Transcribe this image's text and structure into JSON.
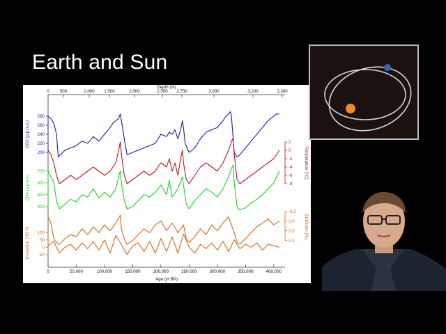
{
  "slide": {
    "title": "Earth and Sun"
  },
  "chart_data": {
    "type": "line",
    "title": "",
    "xlabel": "Age (yr BP)",
    "x_ticks": [
      "0",
      "50,000",
      "100,000",
      "150,000",
      "200,000",
      "250,000",
      "300,000",
      "350,000",
      "400,000"
    ],
    "xlim": [
      0,
      420000
    ],
    "top_axis": {
      "label": "Depth (m)",
      "ticks": [
        "0",
        "500",
        "1,000",
        "1,500",
        "2,000",
        "2,500",
        "2,750",
        "3,000",
        "3,200",
        "3,300"
      ]
    },
    "colors": {
      "co2": "#1a1aa8",
      "temperature": "#c0141b",
      "ch4": "#1fcf1f",
      "d18o": "#d2691e",
      "insolation": "#d2691e"
    },
    "series": [
      {
        "name": "CO2",
        "ylabel": "CO2 (p.p.m.v.)",
        "side": "left",
        "ticks": [
          "200",
          "220",
          "240",
          "260",
          "280"
        ],
        "ylim": [
          180,
          300
        ],
        "x": [
          0,
          5000,
          10000,
          15000,
          18000,
          22000,
          30000,
          40000,
          50000,
          60000,
          70000,
          80000,
          90000,
          100000,
          110000,
          115000,
          120000,
          125000,
          128000,
          130000,
          135000,
          140000,
          150000,
          160000,
          170000,
          180000,
          190000,
          200000,
          210000,
          215000,
          220000,
          225000,
          230000,
          235000,
          238000,
          240000,
          243000,
          250000,
          260000,
          270000,
          280000,
          290000,
          300000,
          310000,
          315000,
          320000,
          323000,
          325000,
          330000,
          335000,
          340000,
          350000,
          360000,
          370000,
          380000,
          390000,
          400000,
          405000,
          410000
        ],
        "values": [
          280,
          275,
          265,
          240,
          190,
          195,
          205,
          210,
          215,
          225,
          220,
          235,
          225,
          240,
          255,
          265,
          270,
          275,
          285,
          270,
          230,
          195,
          200,
          205,
          210,
          215,
          220,
          240,
          235,
          245,
          240,
          250,
          230,
          250,
          270,
          255,
          220,
          200,
          210,
          230,
          245,
          250,
          255,
          270,
          280,
          285,
          290,
          280,
          200,
          190,
          195,
          210,
          225,
          240,
          255,
          270,
          280,
          285,
          285
        ]
      },
      {
        "name": "Temperature",
        "ylabel": "Temperature (°C)",
        "side": "right",
        "ticks": [
          "2",
          "0",
          "-2",
          "-4",
          "-6",
          "-8"
        ],
        "ylim": [
          -9,
          3
        ],
        "x": [
          0,
          5000,
          10000,
          15000,
          20000,
          30000,
          40000,
          50000,
          60000,
          70000,
          80000,
          90000,
          100000,
          110000,
          120000,
          125000,
          128000,
          130000,
          135000,
          140000,
          150000,
          160000,
          170000,
          180000,
          190000,
          200000,
          210000,
          215000,
          220000,
          225000,
          230000,
          235000,
          238000,
          240000,
          245000,
          250000,
          260000,
          270000,
          280000,
          290000,
          300000,
          310000,
          320000,
          325000,
          328000,
          330000,
          335000,
          340000,
          350000,
          360000,
          370000,
          380000,
          390000,
          400000,
          405000,
          410000
        ],
        "values": [
          0,
          -1,
          -3,
          -6,
          -8,
          -7,
          -6,
          -7,
          -6,
          -5,
          -4,
          -5,
          -6,
          -5,
          -3,
          0,
          2,
          -1,
          -6,
          -8,
          -7,
          -6,
          -5,
          -6,
          -5,
          -3,
          -4,
          -2,
          -5,
          -3,
          -6,
          -2,
          0,
          -3,
          -7,
          -8,
          -6,
          -4,
          -3,
          -4,
          -5,
          -3,
          0,
          2,
          3,
          -1,
          -7,
          -8,
          -7,
          -6,
          -5,
          -4,
          -3,
          -2,
          -1,
          0
        ]
      },
      {
        "name": "CH4",
        "ylabel": "CH4 (p.p.b.v.)",
        "side": "left",
        "ticks": [
          "400",
          "500",
          "600",
          "700"
        ],
        "ylim": [
          340,
          780
        ],
        "x": [
          0,
          5000,
          10000,
          15000,
          20000,
          30000,
          40000,
          50000,
          60000,
          70000,
          80000,
          90000,
          100000,
          110000,
          120000,
          125000,
          128000,
          130000,
          135000,
          140000,
          150000,
          160000,
          170000,
          180000,
          190000,
          200000,
          210000,
          215000,
          220000,
          230000,
          238000,
          240000,
          245000,
          250000,
          260000,
          270000,
          280000,
          290000,
          300000,
          310000,
          320000,
          325000,
          328000,
          330000,
          335000,
          340000,
          350000,
          360000,
          370000,
          380000,
          390000,
          400000,
          405000,
          410000
        ],
        "values": [
          700,
          650,
          600,
          450,
          380,
          420,
          460,
          440,
          500,
          480,
          550,
          470,
          520,
          480,
          550,
          650,
          700,
          600,
          450,
          380,
          400,
          450,
          500,
          480,
          520,
          580,
          500,
          620,
          480,
          550,
          650,
          580,
          420,
          380,
          450,
          500,
          550,
          520,
          480,
          550,
          650,
          720,
          750,
          600,
          400,
          370,
          390,
          430,
          460,
          500,
          550,
          600,
          650,
          700
        ]
      },
      {
        "name": "δ18O atm",
        "ylabel": "δ18Oatm (‰)",
        "side": "right",
        "ticks": [
          "-0.5",
          "0.0",
          "0.5",
          "1.0"
        ],
        "ylim": [
          1.3,
          -0.7
        ],
        "x": [
          0,
          5000,
          10000,
          15000,
          20000,
          30000,
          40000,
          50000,
          60000,
          70000,
          80000,
          90000,
          100000,
          110000,
          120000,
          128000,
          130000,
          135000,
          140000,
          150000,
          160000,
          170000,
          180000,
          190000,
          200000,
          210000,
          220000,
          230000,
          240000,
          245000,
          250000,
          260000,
          270000,
          280000,
          290000,
          300000,
          310000,
          320000,
          330000,
          335000,
          340000,
          350000,
          360000,
          370000,
          380000,
          390000,
          400000,
          410000
        ],
        "values": [
          -0.2,
          0.1,
          0.9,
          1.1,
          1.2,
          0.9,
          0.7,
          0.8,
          0.4,
          0.7,
          0.3,
          0.6,
          0.2,
          0.5,
          0.1,
          -0.3,
          0.4,
          0.9,
          1.2,
          1.0,
          0.7,
          0.4,
          0.6,
          0.2,
          0.0,
          0.5,
          0.1,
          0.6,
          0.2,
          0.9,
          1.1,
          0.8,
          0.4,
          0.7,
          0.2,
          0.5,
          0.1,
          -0.2,
          0.6,
          1.1,
          1.2,
          0.9,
          0.6,
          0.3,
          0.1,
          -0.1,
          0.2,
          0.0
        ]
      },
      {
        "name": "Insolation",
        "ylabel": "Insolation J 65°N",
        "side": "left",
        "ticks": [
          "-50",
          "0",
          "50",
          "100"
        ],
        "ylim": [
          -70,
          130
        ],
        "x": [
          0,
          10000,
          20000,
          30000,
          40000,
          50000,
          60000,
          70000,
          80000,
          90000,
          100000,
          110000,
          120000,
          130000,
          140000,
          150000,
          160000,
          170000,
          180000,
          190000,
          200000,
          210000,
          220000,
          230000,
          240000,
          250000,
          260000,
          270000,
          280000,
          290000,
          300000,
          310000,
          320000,
          330000,
          340000,
          350000,
          360000,
          370000,
          380000,
          390000,
          400000,
          410000
        ],
        "values": [
          10,
          40,
          -40,
          0,
          20,
          -20,
          30,
          -10,
          40,
          -20,
          50,
          -40,
          80,
          20,
          -50,
          10,
          30,
          -30,
          40,
          -40,
          60,
          -30,
          70,
          -40,
          90,
          0,
          -40,
          20,
          -10,
          30,
          -20,
          40,
          -30,
          50,
          -10,
          20,
          0,
          30,
          -20,
          20,
          10,
          0
        ]
      }
    ]
  }
}
